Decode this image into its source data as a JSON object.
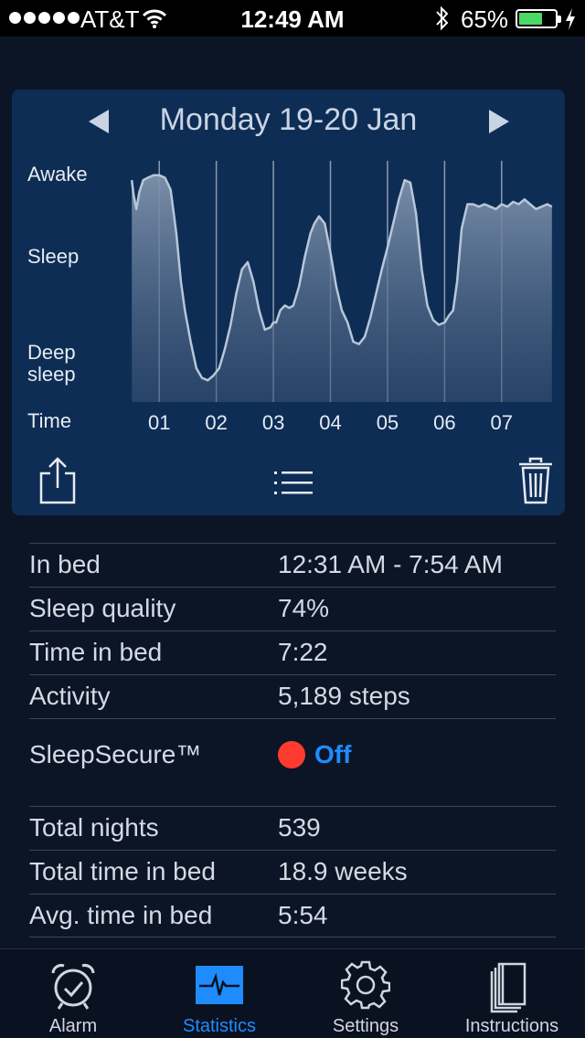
{
  "status_bar": {
    "carrier": "AT&T",
    "time": "12:49 AM",
    "battery_percent": "65%",
    "battery_level": 0.65
  },
  "chart_panel": {
    "title": "Monday 19-20 Jan",
    "prev_icon": "chevron-left-icon",
    "next_icon": "chevron-right-icon",
    "share_icon": "share-icon",
    "list_icon": "list-icon",
    "trash_icon": "trash-icon"
  },
  "chart_data": {
    "type": "area",
    "title": "Monday 19-20 Jan",
    "xlabel": "Time",
    "ylabel": "",
    "y_levels": [
      "Awake",
      "Sleep",
      "Deep sleep"
    ],
    "y_level_labels": {
      "awake": "Awake",
      "sleep": "Sleep",
      "deep_sleep": "Deep\nsleep"
    },
    "ylim": [
      0,
      100
    ],
    "xlim": [
      0.5,
      7.9
    ],
    "x_ticks": [
      "01",
      "02",
      "03",
      "04",
      "05",
      "06",
      "07"
    ],
    "x_tick_values": [
      1,
      2,
      3,
      4,
      5,
      6,
      7
    ],
    "x": [
      0.52,
      0.55,
      0.6,
      0.65,
      0.72,
      0.8,
      0.9,
      1.0,
      1.1,
      1.2,
      1.3,
      1.38,
      1.45,
      1.55,
      1.65,
      1.75,
      1.85,
      1.95,
      2.05,
      2.15,
      2.25,
      2.35,
      2.45,
      2.55,
      2.65,
      2.75,
      2.85,
      2.95,
      3.0,
      3.05,
      3.12,
      3.2,
      3.28,
      3.35,
      3.45,
      3.55,
      3.65,
      3.72,
      3.8,
      3.9,
      4.0,
      4.1,
      4.2,
      4.3,
      4.4,
      4.5,
      4.6,
      4.7,
      4.8,
      4.9,
      5.0,
      5.1,
      5.2,
      5.3,
      5.4,
      5.5,
      5.6,
      5.7,
      5.8,
      5.9,
      6.0,
      6.08,
      6.15,
      6.22,
      6.3,
      6.4,
      6.5,
      6.6,
      6.7,
      6.8,
      6.9,
      7.0,
      7.1,
      7.2,
      7.3,
      7.4,
      7.5,
      7.6,
      7.7,
      7.8,
      7.88
    ],
    "values": [
      92,
      86,
      80,
      87,
      92,
      93,
      94,
      94,
      93,
      88,
      70,
      50,
      38,
      25,
      14,
      10,
      9,
      11,
      14,
      22,
      32,
      45,
      55,
      58,
      50,
      38,
      30,
      31,
      33,
      33,
      38,
      40,
      39,
      40,
      48,
      60,
      70,
      74,
      77,
      74,
      62,
      48,
      38,
      33,
      25,
      24,
      27,
      35,
      45,
      55,
      64,
      74,
      84,
      92,
      91,
      78,
      55,
      40,
      34,
      32,
      33,
      36,
      38,
      50,
      72,
      82,
      82,
      81,
      82,
      81,
      80,
      82,
      81,
      83,
      82,
      84,
      82,
      80,
      81,
      82,
      81
    ],
    "grid_x": true
  },
  "stats": {
    "rows": [
      {
        "label": "In bed",
        "value": "12:31 AM - 7:54 AM"
      },
      {
        "label": "Sleep quality",
        "value": "74%"
      },
      {
        "label": "Time in bed",
        "value": "7:22"
      },
      {
        "label": "Activity",
        "value": "5,189 steps"
      }
    ],
    "secure": {
      "label": "SleepSecure™",
      "value": "Off",
      "status_color": "#ff3b30"
    },
    "totals": [
      {
        "label": "Total nights",
        "value": "539"
      },
      {
        "label": "Total time in bed",
        "value": "18.9 weeks"
      },
      {
        "label": "Avg. time in bed",
        "value": "5:54"
      }
    ]
  },
  "tabs": [
    {
      "label": "Alarm",
      "icon": "alarm-clock-icon"
    },
    {
      "label": "Statistics",
      "icon": "statistics-icon"
    },
    {
      "label": "Settings",
      "icon": "gear-icon"
    },
    {
      "label": "Instructions",
      "icon": "book-icon"
    }
  ],
  "colors": {
    "accent": "#1e8cff",
    "panel": "#0e2d55",
    "background": "#0b1526",
    "status_off": "#ff3b30"
  }
}
